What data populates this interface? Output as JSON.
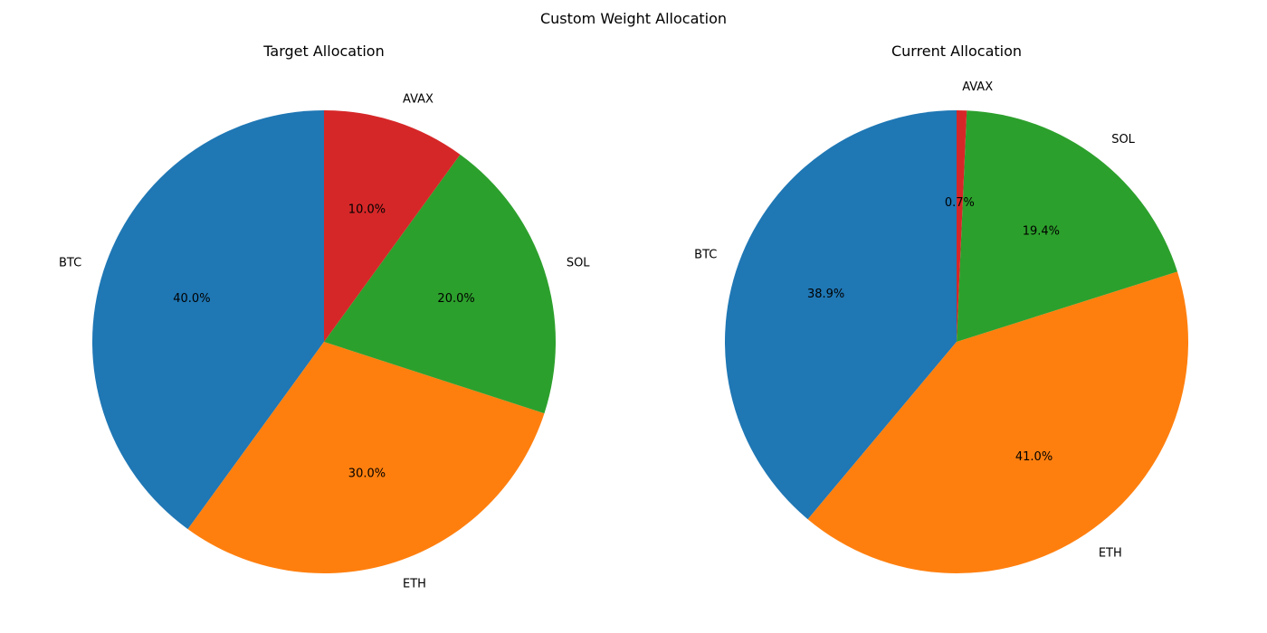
{
  "figure_title": "Custom Weight Allocation",
  "colors": {
    "BTC": "#1f77b4",
    "ETH": "#ff7f0e",
    "SOL": "#2ca02c",
    "AVAX": "#d62728"
  },
  "chart_data": [
    {
      "type": "pie",
      "title": "Target Allocation",
      "start_angle": "90 degrees, counterclockwise",
      "labels": [
        "BTC",
        "ETH",
        "SOL",
        "AVAX"
      ],
      "values": [
        40.0,
        30.0,
        20.0,
        10.0
      ],
      "pct_labels": [
        "40.0%",
        "30.0%",
        "20.0%",
        "10.0%"
      ]
    },
    {
      "type": "pie",
      "title": "Current Allocation",
      "start_angle": "90 degrees, counterclockwise",
      "labels": [
        "BTC",
        "ETH",
        "SOL",
        "AVAX"
      ],
      "values": [
        38.9,
        41.0,
        19.4,
        0.7
      ],
      "pct_labels": [
        "38.9%",
        "41.0%",
        "19.4%",
        "0.7%"
      ]
    }
  ]
}
